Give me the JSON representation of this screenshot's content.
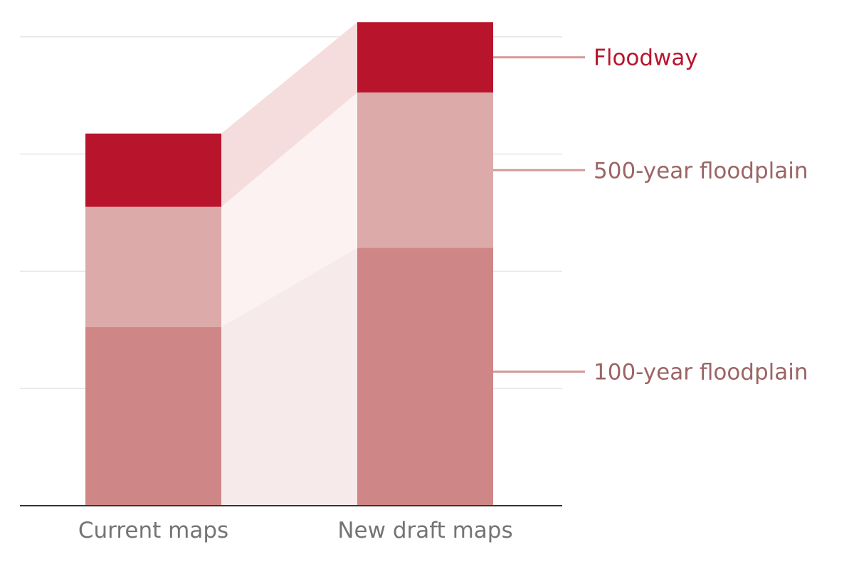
{
  "chart_data": {
    "type": "bar",
    "stacked": true,
    "categories": [
      "Current maps",
      "New draft maps"
    ],
    "series": [
      {
        "name": "100-year floodplain",
        "values": [
          61,
          88
        ],
        "color": "#cf8686",
        "band_color": "#f6ebea"
      },
      {
        "name": "500-year floodplain",
        "values": [
          41,
          53
        ],
        "color": "#dcaaa9",
        "band_color": "#fbf2f1"
      },
      {
        "name": "Floodway",
        "values": [
          25,
          24
        ],
        "color": "#b8152d",
        "band_color": "#f5dcdd"
      }
    ],
    "legend_placement": "right",
    "grid": true,
    "ylim": [
      0,
      164
    ],
    "y_gridlines": [
      40,
      80,
      120,
      160
    ],
    "title": "",
    "xlabel": "",
    "ylabel": ""
  },
  "colors": {
    "gridline": "#e6e6e6",
    "baseline": "#333333",
    "category_text": "#747474",
    "legend_text_floodway": "#b8152d",
    "legend_text_other": "#9b6565",
    "leader_line": "#d39a9a"
  }
}
